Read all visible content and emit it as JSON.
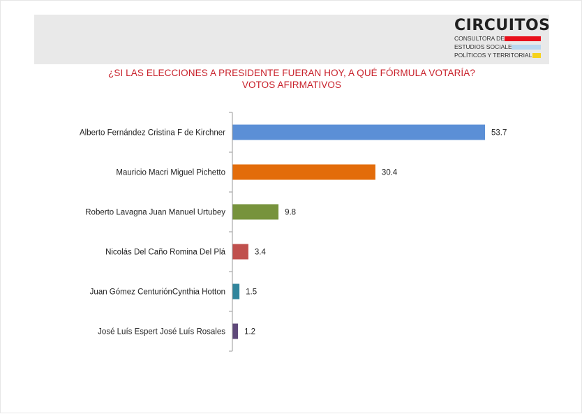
{
  "brand": {
    "name": "CIRCUITOS",
    "line1": "CONSULTORA DE",
    "line2": "ESTUDIOS SOCIALES,",
    "line3": "POLÍTICOS Y TERRITORIALES",
    "colors": {
      "red": "#e8111c",
      "blue": "#b9d7ef",
      "yellow": "#f6d21c"
    }
  },
  "chart_data": {
    "type": "bar",
    "orientation": "horizontal",
    "title": "¿SI LAS ELECCIONES A PRESIDENTE FUERAN HOY, A QUÉ FÓRMULA VOTARÍA?",
    "subtitle": "VOTOS AFIRMATIVOS",
    "categories": [
      "Alberto Fernández Cristina F de Kirchner",
      "Mauricio Macri Miguel Pichetto",
      "Roberto Lavagna Juan Manuel Urtubey",
      "Nicolás Del Caño Romina Del Plá",
      "Juan Gómez CenturiónCynthia Hotton",
      "José Luís Espert José Luís Rosales"
    ],
    "values": [
      53.7,
      30.4,
      9.8,
      3.4,
      1.5,
      1.2
    ],
    "value_labels": [
      "53.7",
      "30.4",
      "9.8",
      "3.4",
      "1.5",
      "1.2"
    ],
    "colors": [
      "#5b8fd6",
      "#e36c0a",
      "#77933c",
      "#c0504d",
      "#31859c",
      "#5f497a"
    ],
    "xlim": [
      0,
      55
    ],
    "grid": false,
    "legend": "none"
  }
}
